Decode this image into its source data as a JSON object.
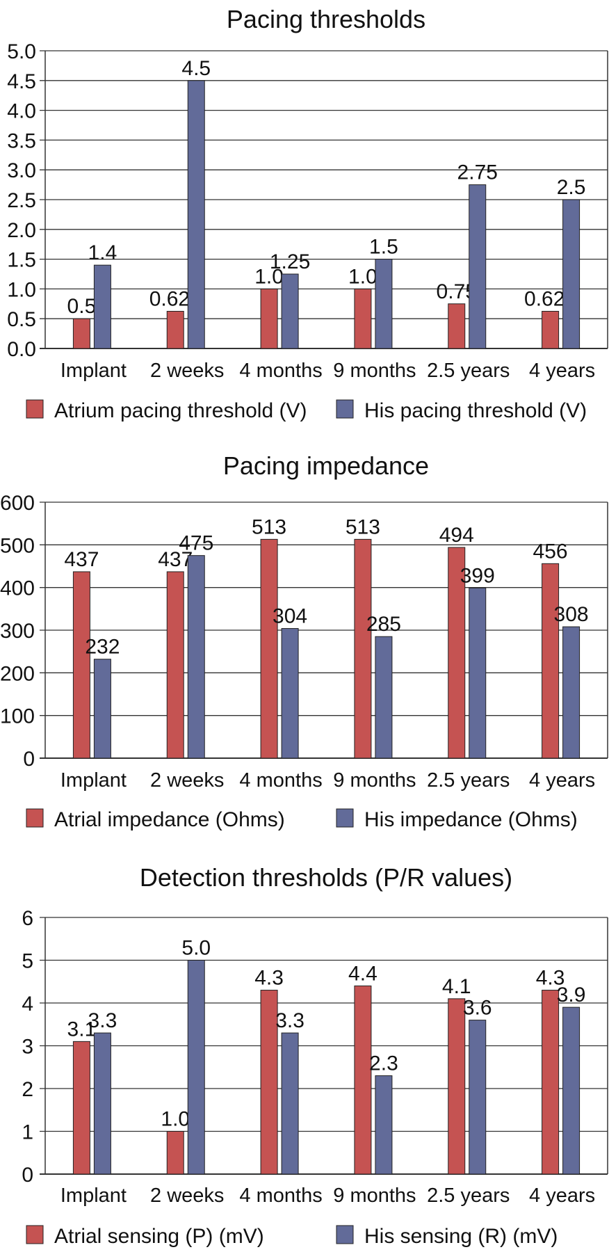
{
  "colors": {
    "atrial": "#c55352",
    "his": "#626b99",
    "grid": "#333333"
  },
  "chart_data": [
    {
      "type": "bar",
      "title": "Pacing thresholds",
      "xlabel": "",
      "ylabel": "",
      "categories": [
        "Implant",
        "2 weeks",
        "4 months",
        "9 months",
        "2.5 years",
        "4 years"
      ],
      "ylim": [
        0,
        5.0
      ],
      "yticks": [
        "0.0",
        "0.5",
        "1.0",
        "1.5",
        "2.0",
        "2.5",
        "3.0",
        "3.5",
        "4.0",
        "4.5",
        "5.0"
      ],
      "ytick_values": [
        0,
        0.5,
        1,
        1.5,
        2,
        2.5,
        3,
        3.5,
        4,
        4.5,
        5
      ],
      "grid": true,
      "legend_position": "bottom",
      "series": [
        {
          "name": "Atrium pacing threshold (V)",
          "values": [
            0.5,
            0.625,
            1.0,
            1.0,
            0.75,
            0.625
          ],
          "labels": [
            "0.5",
            "0.625",
            "1.0",
            "1.0",
            "0.75",
            "0.625"
          ]
        },
        {
          "name": "His pacing threshold (V)",
          "values": [
            1.4,
            4.5,
            1.25,
            1.5,
            2.75,
            2.5
          ],
          "labels": [
            "1.4",
            "4.5",
            "1.25",
            "1.5",
            "2.75",
            "2.5"
          ]
        }
      ]
    },
    {
      "type": "bar",
      "title": "Pacing impedance",
      "xlabel": "",
      "ylabel": "",
      "categories": [
        "Implant",
        "2 weeks",
        "4 months",
        "9 months",
        "2.5 years",
        "4 years"
      ],
      "ylim": [
        0,
        600
      ],
      "yticks": [
        "0",
        "100",
        "200",
        "300",
        "400",
        "500",
        "600"
      ],
      "ytick_values": [
        0,
        100,
        200,
        300,
        400,
        500,
        600
      ],
      "grid": true,
      "legend_position": "bottom",
      "series": [
        {
          "name": "Atrial impedance (Ohms)",
          "values": [
            437,
            437,
            513,
            513,
            494,
            456
          ],
          "labels": [
            "437",
            "437",
            "513",
            "513",
            "494",
            "456"
          ]
        },
        {
          "name": "His impedance (Ohms)",
          "values": [
            232,
            475,
            304,
            285,
            399,
            308
          ],
          "labels": [
            "232",
            "475",
            "304",
            "285",
            "399",
            "308"
          ]
        }
      ]
    },
    {
      "type": "bar",
      "title": "Detection thresholds (P/R values)",
      "xlabel": "",
      "ylabel": "",
      "categories": [
        "Implant",
        "2 weeks",
        "4 months",
        "9 months",
        "2.5 years",
        "4 years"
      ],
      "ylim": [
        0,
        6
      ],
      "yticks": [
        "0",
        "1",
        "2",
        "3",
        "4",
        "5",
        "6"
      ],
      "ytick_values": [
        0,
        1,
        2,
        3,
        4,
        5,
        6
      ],
      "grid": true,
      "legend_position": "bottom",
      "series": [
        {
          "name": "Atrial sensing (P) (mV)",
          "values": [
            3.1,
            1.0,
            4.3,
            4.4,
            4.1,
            4.3
          ],
          "labels": [
            "3.1",
            "1.0",
            "4.3",
            "4.4",
            "4.1",
            "4.3"
          ]
        },
        {
          "name": "His sensing (R) (mV)",
          "values": [
            3.3,
            5.0,
            3.3,
            2.3,
            3.6,
            3.9
          ],
          "labels": [
            "3.3",
            "5.0",
            "3.3",
            "2.3",
            "3.6",
            "3.9"
          ]
        }
      ]
    }
  ]
}
